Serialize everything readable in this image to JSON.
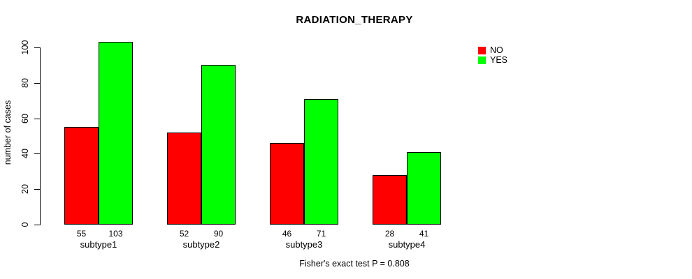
{
  "chart_data": {
    "type": "bar",
    "title": "RADIATION_THERAPY",
    "xlabel": "",
    "ylabel": "number of cases",
    "categories": [
      "subtype1",
      "subtype2",
      "subtype3",
      "subtype4"
    ],
    "series": [
      {
        "name": "NO",
        "color": "#ff0000",
        "values": [
          55,
          52,
          46,
          28
        ]
      },
      {
        "name": "YES",
        "color": "#00ff00",
        "values": [
          103,
          90,
          71,
          41
        ]
      }
    ],
    "ylim": [
      0,
      100
    ],
    "yticks": [
      0,
      20,
      40,
      60,
      80,
      100
    ],
    "grid": false,
    "bar_value_labels_shown": true,
    "legend": {
      "position": "top-right",
      "items": [
        {
          "label": "NO",
          "color": "#ff0000"
        },
        {
          "label": "YES",
          "color": "#00ff00"
        }
      ]
    },
    "footnote": "Fisher's exact test P = 0.808"
  },
  "colors": {
    "background": "#ffffff",
    "bar_border": "#000000",
    "axis": "#000000",
    "text": "#000000"
  }
}
